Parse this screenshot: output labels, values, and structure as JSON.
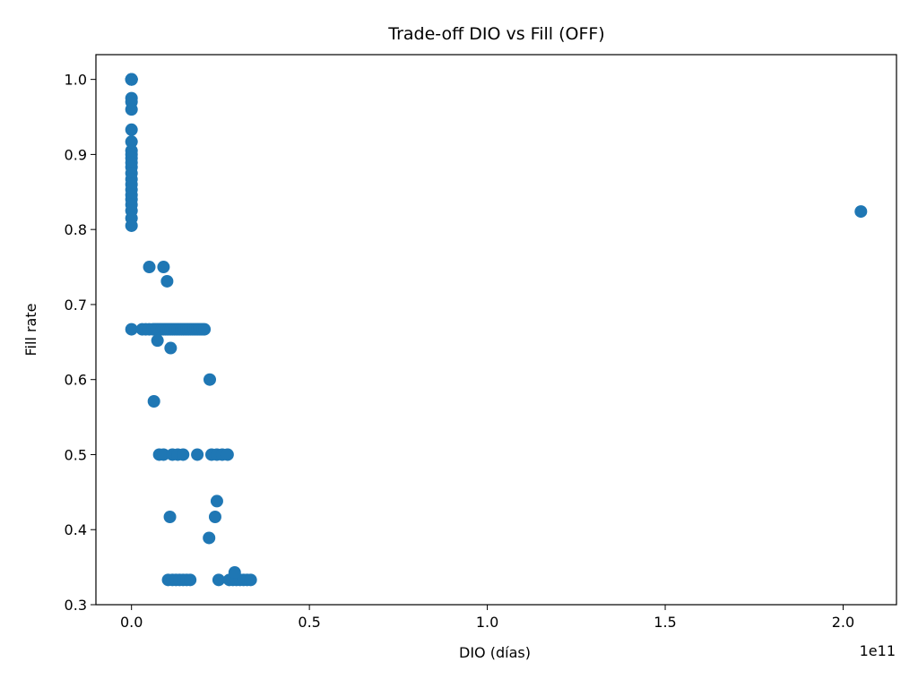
{
  "chart_data": {
    "type": "scatter",
    "title": "Trade-off DIO vs Fill (OFF)",
    "xlabel": "DIO (días)",
    "ylabel": "Fill rate",
    "x_offset_text": "1e11",
    "x_scale": 100000000000.0,
    "xlim": [
      -0.1,
      2.15
    ],
    "ylim": [
      0.3,
      1.033
    ],
    "x_ticks": [
      0.0,
      0.5,
      1.0,
      1.5,
      2.0
    ],
    "x_tick_labels": [
      "0.0",
      "0.5",
      "1.0",
      "1.5",
      "2.0"
    ],
    "y_ticks": [
      0.3,
      0.4,
      0.5,
      0.6,
      0.7,
      0.8,
      0.9,
      1.0
    ],
    "y_tick_labels": [
      "0.3",
      "0.4",
      "0.5",
      "0.6",
      "0.7",
      "0.8",
      "0.9",
      "1.0"
    ],
    "grid": false,
    "marker_color": "#1f77b4",
    "series": [
      {
        "points": [
          [
            0.0,
            1.0
          ],
          [
            0.0,
            1.0
          ],
          [
            0.0,
            1.0
          ],
          [
            0.0,
            1.0
          ],
          [
            0.0,
            1.0
          ],
          [
            0.0,
            0.975
          ],
          [
            0.0,
            0.97
          ],
          [
            0.0,
            0.96
          ],
          [
            0.0,
            0.933
          ],
          [
            0.0,
            0.917
          ],
          [
            0.0,
            0.905
          ],
          [
            0.0,
            0.9
          ],
          [
            0.0,
            0.895
          ],
          [
            0.0,
            0.889
          ],
          [
            0.0,
            0.883
          ],
          [
            0.0,
            0.875
          ],
          [
            0.0,
            0.867
          ],
          [
            0.0,
            0.86
          ],
          [
            0.0,
            0.853
          ],
          [
            0.0,
            0.846
          ],
          [
            0.0,
            0.84
          ],
          [
            0.0,
            0.833
          ],
          [
            0.0,
            0.825
          ],
          [
            0.0,
            0.815
          ],
          [
            0.0,
            0.805
          ],
          [
            0.0,
            0.667
          ],
          [
            0.03,
            0.667
          ],
          [
            0.04,
            0.667
          ],
          [
            0.05,
            0.667
          ],
          [
            0.06,
            0.667
          ],
          [
            0.065,
            0.667
          ],
          [
            0.07,
            0.667
          ],
          [
            0.075,
            0.667
          ],
          [
            0.08,
            0.667
          ],
          [
            0.085,
            0.667
          ],
          [
            0.09,
            0.667
          ],
          [
            0.095,
            0.667
          ],
          [
            0.1,
            0.667
          ],
          [
            0.105,
            0.667
          ],
          [
            0.11,
            0.667
          ],
          [
            0.115,
            0.667
          ],
          [
            0.12,
            0.667
          ],
          [
            0.125,
            0.667
          ],
          [
            0.13,
            0.667
          ],
          [
            0.135,
            0.667
          ],
          [
            0.14,
            0.667
          ],
          [
            0.145,
            0.667
          ],
          [
            0.15,
            0.667
          ],
          [
            0.155,
            0.667
          ],
          [
            0.16,
            0.667
          ],
          [
            0.165,
            0.667
          ],
          [
            0.17,
            0.667
          ],
          [
            0.175,
            0.667
          ],
          [
            0.18,
            0.667
          ],
          [
            0.185,
            0.667
          ],
          [
            0.19,
            0.667
          ],
          [
            0.195,
            0.667
          ],
          [
            0.2,
            0.667
          ],
          [
            0.205,
            0.667
          ],
          [
            0.05,
            0.75
          ],
          [
            0.09,
            0.75
          ],
          [
            0.1,
            0.731
          ],
          [
            0.073,
            0.652
          ],
          [
            0.11,
            0.642
          ],
          [
            0.063,
            0.571
          ],
          [
            0.22,
            0.6
          ],
          [
            0.078,
            0.5
          ],
          [
            0.09,
            0.5
          ],
          [
            0.115,
            0.5
          ],
          [
            0.13,
            0.5
          ],
          [
            0.145,
            0.5
          ],
          [
            0.185,
            0.5
          ],
          [
            0.225,
            0.5
          ],
          [
            0.24,
            0.5
          ],
          [
            0.255,
            0.5
          ],
          [
            0.27,
            0.5
          ],
          [
            0.24,
            0.438
          ],
          [
            0.108,
            0.417
          ],
          [
            0.235,
            0.417
          ],
          [
            0.218,
            0.389
          ],
          [
            0.103,
            0.333
          ],
          [
            0.115,
            0.333
          ],
          [
            0.125,
            0.333
          ],
          [
            0.135,
            0.333
          ],
          [
            0.145,
            0.333
          ],
          [
            0.155,
            0.333
          ],
          [
            0.165,
            0.333
          ],
          [
            0.245,
            0.333
          ],
          [
            0.275,
            0.333
          ],
          [
            0.285,
            0.333
          ],
          [
            0.295,
            0.333
          ],
          [
            0.305,
            0.333
          ],
          [
            0.315,
            0.333
          ],
          [
            0.325,
            0.333
          ],
          [
            0.335,
            0.333
          ],
          [
            0.29,
            0.343
          ],
          [
            2.05,
            0.824
          ]
        ]
      }
    ]
  }
}
